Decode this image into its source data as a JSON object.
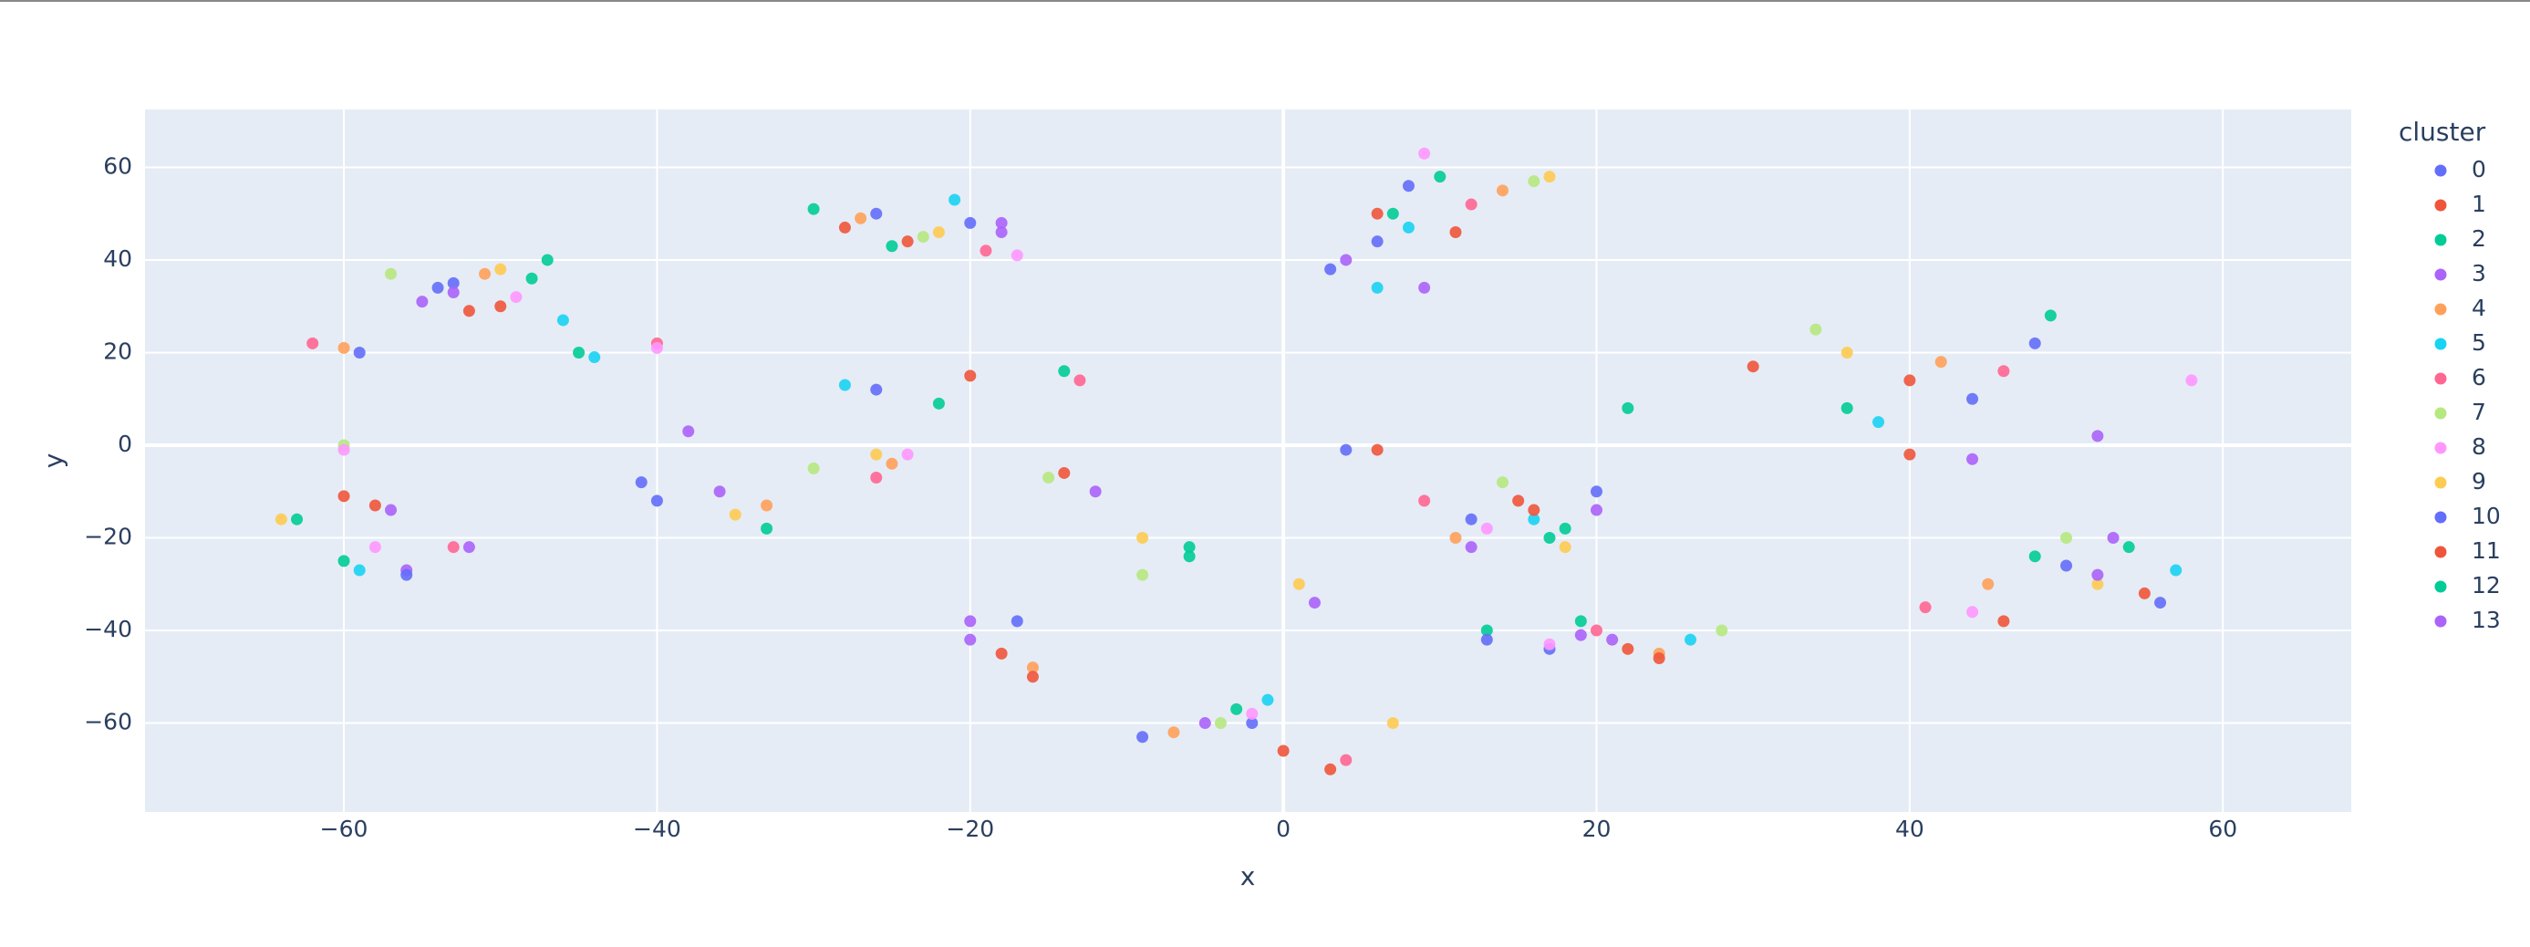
{
  "chart_data": {
    "type": "scatter",
    "xlabel": "x",
    "ylabel": "y",
    "legend_title": "cluster",
    "xlim": [
      -72.7,
      68.2
    ],
    "ylim": [
      -79.2,
      72.5
    ],
    "xticks": [
      {
        "value": -60,
        "label": "−60"
      },
      {
        "value": -40,
        "label": "−40"
      },
      {
        "value": -20,
        "label": "−20"
      },
      0,
      20,
      40,
      60
    ],
    "yticks": [
      {
        "value": -60,
        "label": "−60"
      },
      {
        "value": -40,
        "label": "−40"
      },
      {
        "value": -20,
        "label": "−20"
      },
      0,
      20,
      40,
      60
    ],
    "grid": true,
    "legend": "right",
    "series": [
      {
        "name": "0",
        "color": "#636efa",
        "x": [
          -53,
          -20,
          8,
          44,
          12,
          -2,
          -26,
          50,
          17,
          -59,
          3,
          -40
        ],
        "values": [
          35,
          48,
          56,
          10,
          -16,
          -60,
          12,
          -26,
          -44,
          20,
          38,
          -12
        ]
      },
      {
        "name": "1",
        "color": "#EF553B",
        "x": [
          -50,
          -24,
          6,
          40,
          15,
          0,
          -18,
          55,
          22,
          -58,
          -14,
          30
        ],
        "values": [
          30,
          44,
          50,
          14,
          -12,
          -66,
          -45,
          -32,
          -44,
          -13,
          -6,
          17
        ]
      },
      {
        "name": "2",
        "color": "#00cc96",
        "x": [
          -48,
          -30,
          10,
          36,
          18,
          -3,
          -22,
          48,
          13,
          -63,
          -6,
          -45
        ],
        "values": [
          36,
          51,
          58,
          8,
          -18,
          -57,
          9,
          -24,
          -40,
          -16,
          -22,
          20
        ]
      },
      {
        "name": "3",
        "color": "#ab63fa",
        "x": [
          -55,
          -18,
          4,
          52,
          20,
          2,
          -20,
          53,
          19,
          -56,
          -12,
          -38
        ],
        "values": [
          31,
          46,
          40,
          2,
          -14,
          -34,
          -42,
          -20,
          -41,
          -27,
          -10,
          3
        ]
      },
      {
        "name": "4",
        "color": "#FFA15A",
        "x": [
          -51,
          -27,
          14,
          42,
          11,
          -7,
          -16,
          45,
          24,
          -60,
          -25,
          -33
        ],
        "values": [
          37,
          49,
          55,
          18,
          -20,
          -62,
          -48,
          -30,
          -45,
          21,
          -4,
          -13
        ]
      },
      {
        "name": "5",
        "color": "#19d3f3",
        "x": [
          -46,
          -21,
          8,
          38,
          16,
          -1,
          -28,
          57,
          26,
          -59,
          6,
          -44
        ],
        "values": [
          27,
          53,
          47,
          5,
          -16,
          -55,
          13,
          -27,
          -42,
          -27,
          34,
          19
        ]
      },
      {
        "name": "6",
        "color": "#FF6692",
        "x": [
          -62,
          -19,
          12,
          46,
          9,
          4,
          -13,
          41,
          20,
          -53,
          -26,
          -40
        ],
        "values": [
          22,
          42,
          52,
          16,
          -12,
          -68,
          14,
          -35,
          -40,
          -22,
          -7,
          22
        ]
      },
      {
        "name": "7",
        "color": "#B6E880",
        "x": [
          -57,
          -23,
          16,
          34,
          14,
          -4,
          -15,
          50,
          28,
          -60,
          -30,
          -9
        ],
        "values": [
          37,
          45,
          57,
          25,
          -8,
          -60,
          -7,
          -20,
          -40,
          0,
          -5,
          -28
        ]
      },
      {
        "name": "8",
        "color": "#FF97FF",
        "x": [
          -49,
          -17,
          9,
          58,
          13,
          -2,
          -24,
          44,
          17,
          -60,
          -40,
          -58
        ],
        "values": [
          32,
          41,
          63,
          14,
          -18,
          -58,
          -2,
          -36,
          -43,
          -1,
          21,
          -22
        ]
      },
      {
        "name": "9",
        "color": "#FECB52",
        "x": [
          -50,
          -22,
          17,
          36,
          18,
          1,
          -26,
          52,
          7,
          -64,
          -35,
          -9
        ],
        "values": [
          38,
          46,
          58,
          20,
          -22,
          -30,
          -2,
          -30,
          -60,
          -16,
          -15,
          -20
        ]
      },
      {
        "name": "10",
        "color": "#636efa",
        "x": [
          -54,
          -26,
          6,
          48,
          20,
          -9,
          -17,
          56,
          13,
          -56,
          -41,
          4
        ],
        "values": [
          34,
          50,
          44,
          22,
          -10,
          -63,
          -38,
          -34,
          -42,
          -28,
          -8,
          -1
        ]
      },
      {
        "name": "11",
        "color": "#EF553B",
        "x": [
          -52,
          -28,
          11,
          40,
          16,
          3,
          -16,
          46,
          24,
          -60,
          -20,
          6
        ],
        "values": [
          29,
          47,
          46,
          -2,
          -14,
          -70,
          -50,
          -38,
          -46,
          -11,
          15,
          -1
        ]
      },
      {
        "name": "12",
        "color": "#00cc96",
        "x": [
          -47,
          -25,
          7,
          49,
          17,
          -6,
          -14,
          54,
          19,
          -60,
          -33,
          22
        ],
        "values": [
          40,
          43,
          50,
          28,
          -20,
          -24,
          16,
          -22,
          -38,
          -25,
          -18,
          8
        ]
      },
      {
        "name": "13",
        "color": "#ab63fa",
        "x": [
          -53,
          -18,
          9,
          44,
          12,
          -5,
          -20,
          52,
          21,
          -57,
          -36,
          -52
        ],
        "values": [
          33,
          48,
          34,
          -3,
          -22,
          -60,
          -38,
          -28,
          -42,
          -14,
          -10,
          -22
        ]
      }
    ]
  }
}
